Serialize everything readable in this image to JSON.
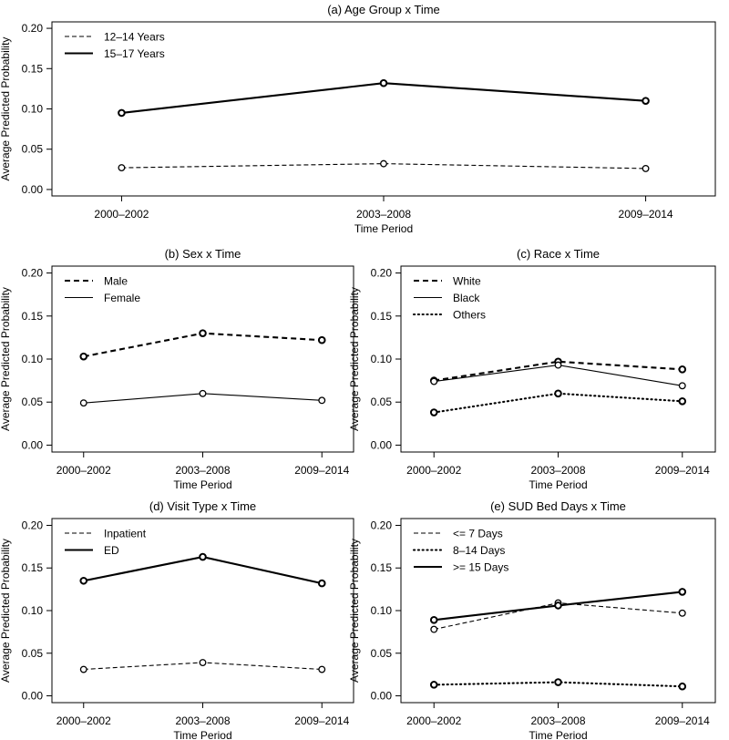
{
  "chart_data": [
    {
      "id": "a",
      "type": "line",
      "title": "(a) Age Group x Time",
      "xlabel": "Time Period",
      "ylabel": "Average Predicted Probability",
      "categories": [
        "2000–2002",
        "2003–2008",
        "2009–2014"
      ],
      "ylim": [
        0,
        0.2
      ],
      "yticks": [
        "0.00",
        "0.05",
        "0.10",
        "0.15",
        "0.20"
      ],
      "legend_position": "top-left",
      "series": [
        {
          "name": "12–14 Years",
          "style": "dashed",
          "weight": "thin",
          "values": [
            0.027,
            0.032,
            0.026
          ]
        },
        {
          "name": "15–17 Years",
          "style": "solid",
          "weight": "thick",
          "values": [
            0.095,
            0.132,
            0.11
          ]
        }
      ]
    },
    {
      "id": "b",
      "type": "line",
      "title": "(b) Sex x Time",
      "xlabel": "Time Period",
      "ylabel": "Average Predicted Probability",
      "categories": [
        "2000–2002",
        "2003–2008",
        "2009–2014"
      ],
      "ylim": [
        0,
        0.2
      ],
      "yticks": [
        "0.00",
        "0.05",
        "0.10",
        "0.15",
        "0.20"
      ],
      "legend_position": "top-left",
      "series": [
        {
          "name": "Male",
          "style": "dashed",
          "weight": "thick",
          "values": [
            0.103,
            0.13,
            0.122
          ]
        },
        {
          "name": "Female",
          "style": "solid",
          "weight": "thin",
          "values": [
            0.049,
            0.06,
            0.052
          ]
        }
      ]
    },
    {
      "id": "c",
      "type": "line",
      "title": "(c) Race x Time",
      "xlabel": "Time Period",
      "ylabel": "Average Predicted Probability",
      "categories": [
        "2000–2002",
        "2003–2008",
        "2009–2014"
      ],
      "ylim": [
        0,
        0.2
      ],
      "yticks": [
        "0.00",
        "0.05",
        "0.10",
        "0.15",
        "0.20"
      ],
      "legend_position": "top-left",
      "series": [
        {
          "name": "White",
          "style": "dashed",
          "weight": "thick",
          "values": [
            0.075,
            0.097,
            0.088
          ]
        },
        {
          "name": "Black",
          "style": "solid",
          "weight": "thin",
          "values": [
            0.074,
            0.093,
            0.069
          ]
        },
        {
          "name": "Others",
          "style": "dotted",
          "weight": "thick",
          "values": [
            0.038,
            0.06,
            0.051
          ]
        }
      ]
    },
    {
      "id": "d",
      "type": "line",
      "title": "(d) Visit Type x Time",
      "xlabel": "Time Period",
      "ylabel": "Average Predicted Probability",
      "categories": [
        "2000–2002",
        "2003–2008",
        "2009–2014"
      ],
      "ylim": [
        0,
        0.2
      ],
      "yticks": [
        "0.00",
        "0.05",
        "0.10",
        "0.15",
        "0.20"
      ],
      "legend_position": "top-left",
      "series": [
        {
          "name": "Inpatient",
          "style": "dashed",
          "weight": "thin",
          "values": [
            0.031,
            0.039,
            0.031
          ]
        },
        {
          "name": "ED",
          "style": "solid",
          "weight": "thick",
          "values": [
            0.135,
            0.163,
            0.132
          ]
        }
      ]
    },
    {
      "id": "e",
      "type": "line",
      "title": "(e) SUD Bed Days x Time",
      "xlabel": "Time Period",
      "ylabel": "Average Predicted Probability",
      "categories": [
        "2000–2002",
        "2003–2008",
        "2009–2014"
      ],
      "ylim": [
        0,
        0.2
      ],
      "yticks": [
        "0.00",
        "0.05",
        "0.10",
        "0.15",
        "0.20"
      ],
      "legend_position": "top-left",
      "series": [
        {
          "name": "<= 7 Days",
          "style": "dashed",
          "weight": "thin",
          "values": [
            0.078,
            0.109,
            0.097
          ]
        },
        {
          "name": "8–14 Days",
          "style": "dotted",
          "weight": "thick",
          "values": [
            0.013,
            0.016,
            0.011
          ]
        },
        {
          "name": ">= 15 Days",
          "style": "solid",
          "weight": "thick",
          "values": [
            0.089,
            0.106,
            0.122
          ]
        }
      ]
    }
  ]
}
